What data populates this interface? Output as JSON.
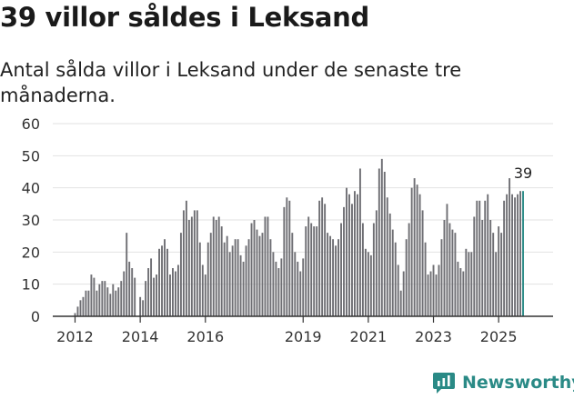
{
  "title": "39 villor såldes i Leksand",
  "subtitle": "Antal sålda villor i Leksand under de senaste tre månaderna.",
  "brand": {
    "name": "Newsworthy",
    "icon": "newsworthy-logo-icon",
    "color": "#2a8a86"
  },
  "colors": {
    "bar": "#6e6e73",
    "highlight": "#2a8a86",
    "grid": "#e2e2e2",
    "axis": "#333333"
  },
  "chart_data": {
    "type": "bar",
    "title": "39 villor såldes i Leksand",
    "xlabel": "",
    "ylabel": "",
    "ylim": [
      0,
      60
    ],
    "yticks": [
      0,
      10,
      20,
      30,
      40,
      50,
      60
    ],
    "xtick_labels": [
      "2012",
      "2014",
      "2016",
      "2019",
      "2021",
      "2023",
      "2025"
    ],
    "xtick_positions": [
      2012.0,
      2014.0,
      2016.0,
      2019.0,
      2021.0,
      2023.0,
      2025.0
    ],
    "start": "2012-01",
    "grid": true,
    "annotation": {
      "label": "39",
      "index": 165
    },
    "values": [
      1,
      3,
      5,
      6,
      8,
      8,
      13,
      12,
      8,
      10,
      11,
      11,
      9,
      7,
      10,
      8,
      9,
      11,
      14,
      26,
      17,
      15,
      12,
      0,
      6,
      5,
      11,
      15,
      18,
      12,
      13,
      21,
      22,
      24,
      21,
      13,
      15,
      14,
      16,
      26,
      33,
      36,
      30,
      31,
      33,
      33,
      23,
      16,
      13,
      23,
      26,
      31,
      30,
      31,
      28,
      23,
      25,
      20,
      22,
      24,
      24,
      19,
      17,
      22,
      24,
      29,
      30,
      27,
      25,
      26,
      31,
      31,
      24,
      20,
      17,
      15,
      18,
      34,
      37,
      36,
      26,
      20,
      17,
      14,
      18,
      28,
      31,
      29,
      28,
      28,
      36,
      37,
      35,
      26,
      25,
      24,
      22,
      24,
      29,
      34,
      40,
      38,
      35,
      39,
      38,
      46,
      29,
      21,
      20,
      19,
      29,
      33,
      46,
      49,
      45,
      37,
      32,
      27,
      23,
      16,
      8,
      14,
      24,
      29,
      40,
      43,
      41,
      38,
      33,
      23,
      13,
      14,
      16,
      13,
      16,
      24,
      30,
      35,
      29,
      27,
      26,
      17,
      15,
      14,
      21,
      20,
      20,
      31,
      36,
      36,
      30,
      36,
      38,
      30,
      26,
      20,
      28,
      26,
      36,
      38,
      43,
      38,
      37,
      38,
      39,
      39
    ]
  }
}
